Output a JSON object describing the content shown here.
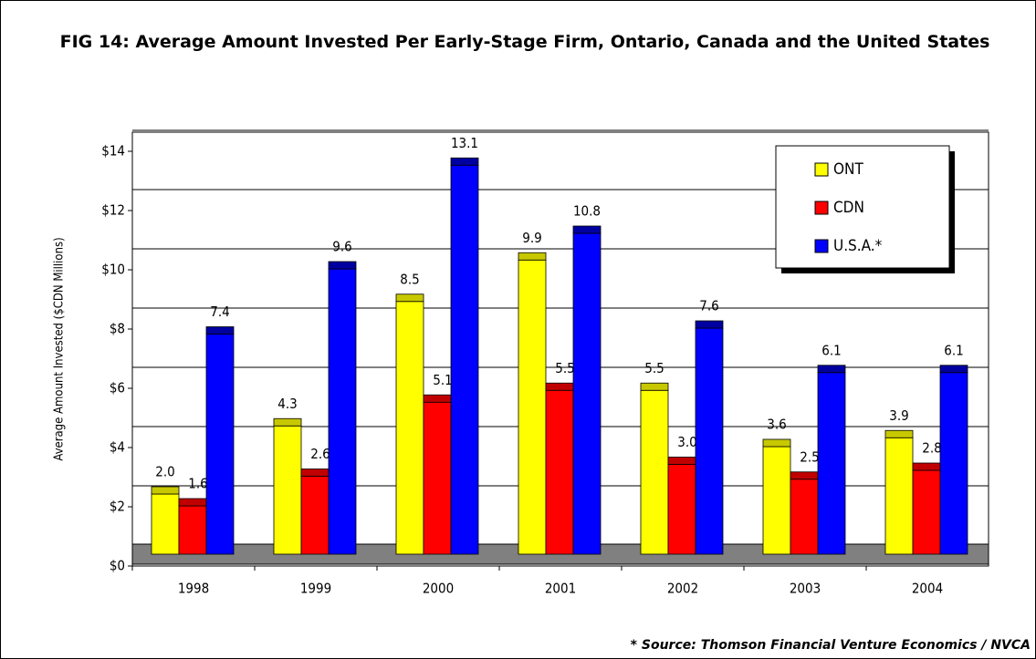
{
  "chart_data": {
    "type": "bar",
    "title": "FIG 14: Average Amount Invested Per Early-Stage Firm, Ontario, Canada and the United States",
    "y_axis_label": "Average Amount Invested ($CDN Millions)",
    "annotation": "* Source: Thomson Financial Venture Economics / NVCA",
    "categories": [
      "1998",
      "1999",
      "2000",
      "2001",
      "2002",
      "2003",
      "2004"
    ],
    "series": [
      {
        "name": "ONT",
        "color": "#ffff00",
        "values": [
          2.0,
          4.3,
          8.5,
          9.9,
          5.5,
          3.6,
          3.9
        ],
        "value_labels": [
          "2.0",
          "4.3",
          "8.5",
          "9.9",
          "5.5",
          "3.6",
          "3.9"
        ]
      },
      {
        "name": "CDN",
        "color": "#ff0000",
        "values": [
          1.6,
          2.6,
          5.1,
          5.5,
          3.0,
          2.5,
          2.8
        ],
        "value_labels": [
          "1.6",
          "2.6",
          "5.1",
          "5.5",
          "3.0",
          "2.5",
          "2.8"
        ]
      },
      {
        "name": "U.S.A.*",
        "color": "#0000ff",
        "values": [
          7.4,
          9.6,
          13.1,
          10.8,
          7.6,
          6.1,
          6.1
        ],
        "value_labels": [
          "7.4",
          "9.6",
          "13.1",
          "10.8",
          "7.6",
          "6.1",
          "6.1"
        ]
      }
    ],
    "ylim": [
      0,
      14
    ],
    "yticks": [
      {
        "value": 0,
        "label": "$0"
      },
      {
        "value": 2,
        "label": "$2"
      },
      {
        "value": 4,
        "label": "$4"
      },
      {
        "value": 6,
        "label": "$6"
      },
      {
        "value": 8,
        "label": "$8"
      },
      {
        "value": 10,
        "label": "$10"
      },
      {
        "value": 12,
        "label": "$12"
      },
      {
        "value": 14,
        "label": "$14"
      }
    ],
    "grid": true,
    "legend": "top-right"
  }
}
